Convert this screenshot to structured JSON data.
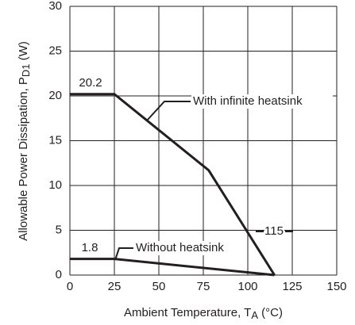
{
  "chart_data": {
    "type": "line",
    "x_label": {
      "text": "Ambient Temperature, T",
      "subscript": "A",
      "suffix": " (°C)"
    },
    "y_label": {
      "text": "Allowable Power Dissipation, P",
      "subscript": "D1",
      "suffix": " (W)"
    },
    "series": [
      {
        "name": "With infinite heatsink",
        "color": "#231f20",
        "x": [
          0,
          25,
          78,
          115
        ],
        "values": [
          20.2,
          20.2,
          11.7,
          0
        ]
      },
      {
        "name": "Without heatsink",
        "color": "#231f20",
        "x": [
          0,
          25,
          115
        ],
        "values": [
          1.8,
          1.8,
          0
        ]
      }
    ],
    "annotations": [
      "20.2",
      "1.8",
      "115"
    ],
    "xlim": [
      0,
      150
    ],
    "xticks": [
      0,
      25,
      50,
      75,
      100,
      125,
      150
    ],
    "ylim": [
      0,
      30
    ],
    "yticks": [
      0,
      5,
      10,
      15,
      20,
      25,
      30
    ],
    "grid": true
  }
}
